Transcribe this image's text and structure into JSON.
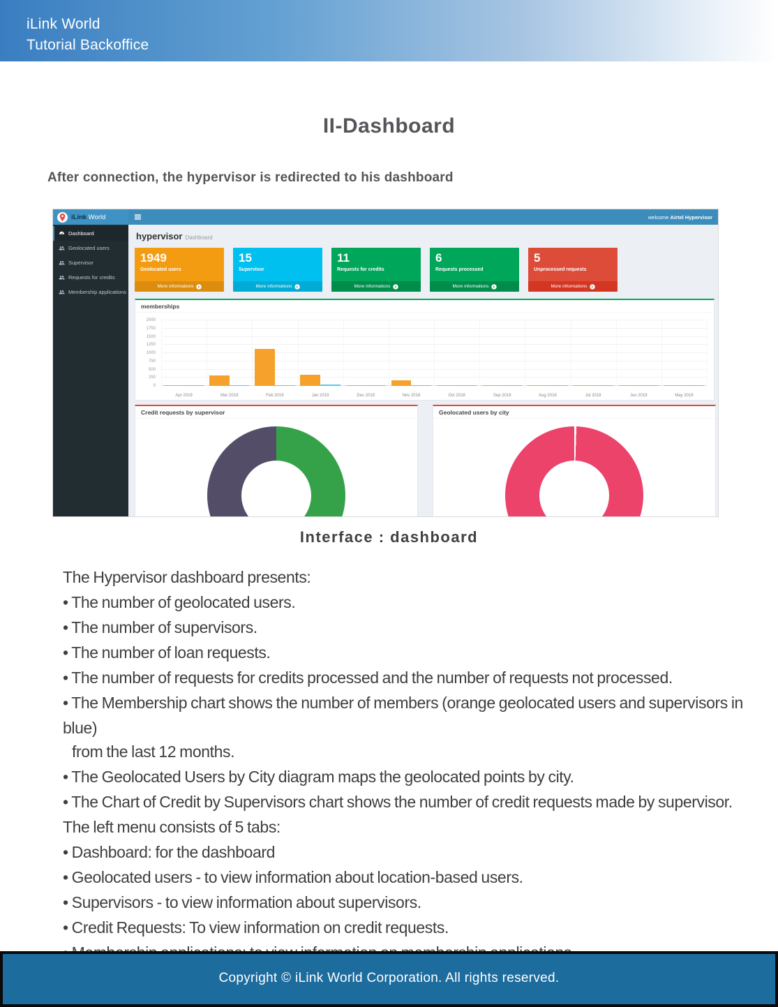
{
  "colors": {
    "banner_from": "#3a7ec1",
    "navbar": "#3c8dbc",
    "sidebar": "#222d32",
    "content_bg": "#ecf0f5",
    "footer": "#1d6c9e",
    "heading_text": "#545559",
    "body_text": "#3e3e40",
    "green": "#00a65a",
    "red": "#dd4b39"
  },
  "banner": {
    "line1": "iLink World",
    "line2": "Tutorial Backoffice"
  },
  "title": "II-Dashboard",
  "intro": "After connection, the hypervisor is redirected to his dashboard",
  "dashboard": {
    "brand": {
      "bold": "iLink",
      "light": " World"
    },
    "welcome_prefix": "welcome ",
    "welcome_user": "Airtel Hypervisor",
    "sidebar": [
      {
        "label": "Dashboard"
      },
      {
        "label": "Geolocated users"
      },
      {
        "label": "Supervisor"
      },
      {
        "label": "Requests for credits"
      },
      {
        "label": "Membership applications"
      }
    ],
    "page_heading": {
      "title": "hypervisor",
      "subtitle": "Dashboard"
    },
    "cards": [
      {
        "value": "1949",
        "label": "Geolocated users",
        "more": "More informations",
        "color": "#f39c12",
        "footer_color": "#dd8d0e"
      },
      {
        "value": "15",
        "label": "Supervisor",
        "more": "More informations",
        "color": "#00c0ef",
        "footer_color": "#00acd6"
      },
      {
        "value": "11",
        "label": "Requests for credits",
        "more": "More informations",
        "color": "#00a65a",
        "footer_color": "#008d4c"
      },
      {
        "value": "6",
        "label": "Requests processed",
        "more": "More informations",
        "color": "#00a65a",
        "footer_color": "#008d4c"
      },
      {
        "value": "5",
        "label": "Unprocessed requests",
        "more": "More informations",
        "color": "#dd4b39",
        "footer_color": "#d33724"
      }
    ]
  },
  "chart_data": [
    {
      "type": "bar",
      "title": "memberships",
      "categories": [
        "Apr 2019",
        "Mar 2019",
        "Feb 2019",
        "Jan 2019",
        "Dec 2018",
        "Nov 2018",
        "Oct 2018",
        "Sep 2018",
        "Aug 2018",
        "Jul 2018",
        "Jun 2018",
        "May 2018"
      ],
      "series": [
        {
          "name": "Geolocated users",
          "color": "#f6a12c",
          "values": [
            15,
            330,
            1120,
            350,
            20,
            160,
            15,
            15,
            15,
            15,
            15,
            15
          ]
        },
        {
          "name": "Supervisors",
          "color": "#57c7f2",
          "values": [
            12,
            12,
            12,
            35,
            12,
            12,
            12,
            12,
            12,
            12,
            12,
            12
          ]
        }
      ],
      "xlabel": "",
      "ylabel": "",
      "ylim": [
        0,
        2000
      ],
      "yticks": [
        0,
        250,
        500,
        750,
        1000,
        1250,
        1500,
        1750,
        2000
      ],
      "grid": true,
      "legend": "none"
    },
    {
      "type": "pie",
      "title": "Credit requests by supervisor",
      "donut": true,
      "slices": [
        {
          "value": 50,
          "color": "#35a24a"
        },
        {
          "value": 50,
          "color": "#544d68"
        }
      ]
    },
    {
      "type": "pie",
      "title": "Geolocated users by city",
      "donut": true,
      "slices": [
        {
          "value": 0.5,
          "color": "#ffffff"
        },
        {
          "value": 99.5,
          "color": "#ec436b"
        }
      ]
    }
  ],
  "caption": "Interface : dashboard",
  "body": {
    "lines": [
      {
        "text": "The Hypervisor dashboard presents:",
        "indent": 0
      },
      {
        "text": "• The number of geolocated users.",
        "indent": 0
      },
      {
        "text": "• The number of supervisors.",
        "indent": 0
      },
      {
        "text": "• The number of loan requests.",
        "indent": 0
      },
      {
        "text": "• The number of requests for credits processed and the number of requests not processed.",
        "indent": 0
      },
      {
        "text": "• The Membership chart shows the number of members (orange geolocated users and supervisors in blue)",
        "indent": 0
      },
      {
        "text": "from the last 12 months.",
        "indent": 1
      },
      {
        "text": "• The Geolocated Users by City diagram maps the geolocated points by city.",
        "indent": 0
      },
      {
        "text": "• The Chart of Credit by Supervisors chart shows the number of credit requests made by supervisor.",
        "indent": 0
      },
      {
        "text": "The left menu consists of 5 tabs:",
        "indent": 0
      },
      {
        "text": "• Dashboard: for the dashboard",
        "indent": 0
      },
      {
        "text": "• Geolocated users - to view information about location-based users.",
        "indent": 0
      },
      {
        "text": "• Supervisors - to view information about supervisors.",
        "indent": 0
      },
      {
        "text": "• Credit Requests: To view information on credit requests.",
        "indent": 0
      },
      {
        "text": "• Membership applications: to view information on membership applications.",
        "indent": 0
      }
    ]
  },
  "footer": "Copyright © iLink World Corporation. All rights reserved."
}
